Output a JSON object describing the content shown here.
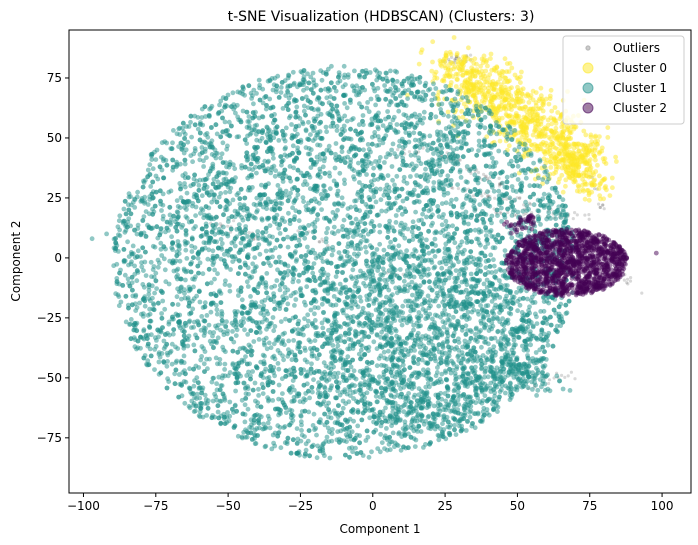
{
  "chart_data": {
    "type": "scatter",
    "title": "t-SNE Visualization (HDBSCAN)  (Clusters: 3)",
    "xlabel": "Component 1",
    "ylabel": "Component 2",
    "xlim": [
      -105,
      110
    ],
    "ylim": [
      -98,
      95
    ],
    "xticks": [
      -100,
      -75,
      -50,
      -25,
      0,
      25,
      50,
      75,
      100
    ],
    "yticks": [
      -75,
      -50,
      -25,
      0,
      25,
      50,
      75
    ],
    "grid": false,
    "legend_position": "top-right",
    "series": [
      {
        "name": "Outliers",
        "color": "#000000",
        "opacity": 0.15,
        "regions": [
          {
            "type": "band",
            "from": [
              23,
              82
            ],
            "to": [
              35,
              84
            ],
            "n": 20
          },
          {
            "type": "band",
            "from": [
              22,
              45
            ],
            "to": [
              45,
              30
            ],
            "n": 40
          },
          {
            "type": "band",
            "from": [
              25,
              30
            ],
            "to": [
              55,
              22
            ],
            "n": 35
          },
          {
            "type": "band",
            "from": [
              35,
              20
            ],
            "to": [
              75,
              17
            ],
            "n": 35
          },
          {
            "type": "band",
            "from": [
              75,
              35
            ],
            "to": [
              80,
              20
            ],
            "n": 10
          },
          {
            "type": "band",
            "from": [
              55,
              -52
            ],
            "to": [
              72,
              -48
            ],
            "n": 15
          },
          {
            "type": "band",
            "from": [
              -55,
              15
            ],
            "to": [
              -40,
              8
            ],
            "n": 18
          },
          {
            "type": "band",
            "from": [
              -25,
              10
            ],
            "to": [
              -15,
              5
            ],
            "n": 8
          },
          {
            "type": "band",
            "from": [
              5,
              42
            ],
            "to": [
              18,
              45
            ],
            "n": 10
          },
          {
            "type": "band",
            "from": [
              5,
              -5
            ],
            "to": [
              12,
              -8
            ],
            "n": 6
          },
          {
            "type": "band",
            "from": [
              85,
              -5
            ],
            "to": [
              92,
              -15
            ],
            "n": 8
          }
        ]
      },
      {
        "name": "Cluster 0",
        "color": "#fde725",
        "opacity": 0.5,
        "regions": [
          {
            "type": "band",
            "from": [
              27,
              80
            ],
            "to": [
              73,
              40
            ],
            "n": 900,
            "width": 12
          },
          {
            "type": "band",
            "from": [
              65,
              42
            ],
            "to": [
              77,
              28
            ],
            "n": 120,
            "width": 6
          }
        ]
      },
      {
        "name": "Cluster 1",
        "color": "#21918c",
        "opacity": 0.5,
        "regions": [
          {
            "type": "ellipse",
            "cx": -10,
            "cy": -2,
            "rx": 80,
            "ry": 82,
            "n": 6500
          },
          {
            "type": "ellipse",
            "cx": 20,
            "cy": -35,
            "rx": 35,
            "ry": 40,
            "n": 800
          },
          {
            "type": "band",
            "from": [
              40,
              -45
            ],
            "to": [
              60,
              -50
            ],
            "n": 150,
            "width": 8
          },
          {
            "type": "point",
            "x": -97,
            "y": 8
          },
          {
            "type": "point",
            "x": -92,
            "y": 10
          }
        ]
      },
      {
        "name": "Cluster 2",
        "color": "#440154",
        "opacity": 0.5,
        "regions": [
          {
            "type": "ellipse",
            "cx": 67,
            "cy": -2,
            "rx": 21,
            "ry": 14,
            "n": 1400
          },
          {
            "type": "band",
            "from": [
              47,
              12
            ],
            "to": [
              55,
              16
            ],
            "n": 40,
            "width": 3
          },
          {
            "type": "point",
            "x": 98,
            "y": 2
          }
        ]
      }
    ]
  }
}
